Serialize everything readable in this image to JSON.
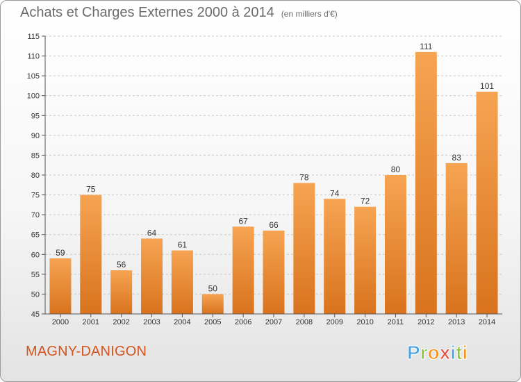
{
  "header": {
    "title": "Achats et Charges Externes 2000 à 2014",
    "unit": "(en milliers d'€)"
  },
  "footer": {
    "place": "MAGNY-DANIGON",
    "brand": "Proxiti"
  },
  "colors": {
    "bar_light": "#f6a452",
    "bar_dark": "#d9731d",
    "place_text": "#d3541f",
    "title_text": "#6b6b6b"
  },
  "chart_data": {
    "type": "bar",
    "title": "Achats et Charges Externes 2000 à 2014",
    "subtitle": "(en milliers d'€)",
    "categories": [
      "2000",
      "2001",
      "2002",
      "2003",
      "2004",
      "2005",
      "2006",
      "2007",
      "2008",
      "2009",
      "2010",
      "2011",
      "2012",
      "2013",
      "2014"
    ],
    "values": [
      59,
      75,
      56,
      64,
      61,
      50,
      67,
      66,
      78,
      74,
      72,
      80,
      111,
      83,
      101
    ],
    "ylim": [
      45,
      115
    ],
    "yticks": [
      45,
      50,
      55,
      60,
      65,
      70,
      75,
      80,
      85,
      90,
      95,
      100,
      105,
      110,
      115
    ],
    "grid": "horizontal dashed",
    "legend": "none"
  }
}
